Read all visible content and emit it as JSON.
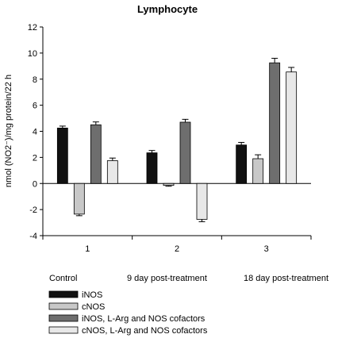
{
  "chart_data": {
    "type": "bar",
    "title": "Lymphocyte",
    "ylabel": "nmol (NO2⁻)/mg protein/22 h",
    "xlabel": "",
    "categories": [
      "1",
      "2",
      "3"
    ],
    "group_labels": [
      "Control",
      "9 day post-treatment",
      "18 day post-treatment"
    ],
    "ylim": [
      -4,
      12
    ],
    "yticks": [
      -4,
      -2,
      0,
      2,
      4,
      6,
      8,
      10,
      12
    ],
    "legend_position": "bottom-left",
    "series": [
      {
        "name": "iNOS",
        "color": "#111111",
        "values": [
          4.25,
          2.35,
          2.95
        ],
        "errors": [
          0.15,
          0.18,
          0.2
        ]
      },
      {
        "name": "cNOS",
        "color": "#c8c8c8",
        "values": [
          -2.35,
          -0.15,
          1.9
        ],
        "errors": [
          0.12,
          0.06,
          0.3
        ]
      },
      {
        "name": "iNOS, L-Arg and NOS cofactors",
        "color": "#6e6e6e",
        "values": [
          4.5,
          4.7,
          9.25
        ],
        "errors": [
          0.22,
          0.22,
          0.35
        ]
      },
      {
        "name": "cNOS, L-Arg and NOS cofactors",
        "color": "#e8e8e8",
        "values": [
          1.75,
          -2.75,
          8.55
        ],
        "errors": [
          0.2,
          0.18,
          0.35
        ]
      }
    ]
  }
}
